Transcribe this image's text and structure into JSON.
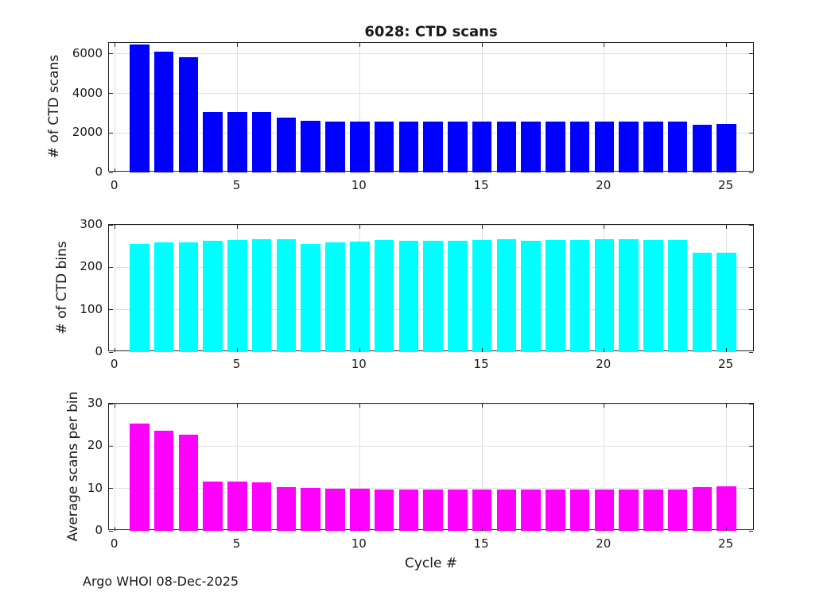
{
  "title": "6028: CTD scans",
  "footer": "Argo WHOI 08-Dec-2025",
  "chart_data": [
    {
      "type": "bar",
      "name": "ctd-scans",
      "title": "6028: CTD scans",
      "ylabel": "# of CTD scans",
      "color": "#0000FF",
      "x": [
        1,
        2,
        3,
        4,
        5,
        6,
        7,
        8,
        9,
        10,
        11,
        12,
        13,
        14,
        15,
        16,
        17,
        18,
        19,
        20,
        21,
        22,
        23,
        24,
        25
      ],
      "values": [
        6470,
        6110,
        5850,
        3070,
        3070,
        3070,
        2780,
        2620,
        2580,
        2580,
        2580,
        2580,
        2580,
        2580,
        2580,
        2580,
        2580,
        2580,
        2580,
        2580,
        2580,
        2580,
        2580,
        2430,
        2450
      ],
      "ylim": [
        0,
        6560
      ],
      "yticks": [
        0,
        2000,
        4000,
        6000
      ],
      "xlim": [
        -0.25,
        26.15
      ],
      "xticks": [
        0,
        5,
        10,
        15,
        20,
        25
      ],
      "grid": true,
      "bar_width": 0.8
    },
    {
      "type": "bar",
      "name": "ctd-bins",
      "ylabel": "# of CTD bins",
      "color": "#00FFFF",
      "x": [
        1,
        2,
        3,
        4,
        5,
        6,
        7,
        8,
        9,
        10,
        11,
        12,
        13,
        14,
        15,
        16,
        17,
        18,
        19,
        20,
        21,
        22,
        23,
        24,
        25
      ],
      "values": [
        256,
        258,
        258,
        262,
        264,
        267,
        267,
        256,
        258,
        260,
        264,
        263,
        262,
        262,
        264,
        267,
        263,
        264,
        264,
        267,
        267,
        264,
        264,
        234,
        234
      ],
      "ylim": [
        0,
        300
      ],
      "yticks": [
        0,
        100,
        200,
        300
      ],
      "xlim": [
        -0.25,
        26.15
      ],
      "xticks": [
        0,
        5,
        10,
        15,
        20,
        25
      ],
      "grid": true,
      "bar_width": 0.8
    },
    {
      "type": "bar",
      "name": "avg-scans-per-bin",
      "ylabel": "Average scans per bin",
      "xlabel": "Cycle #",
      "color": "#FF00FF",
      "x": [
        1,
        2,
        3,
        4,
        5,
        6,
        7,
        8,
        9,
        10,
        11,
        12,
        13,
        14,
        15,
        16,
        17,
        18,
        19,
        20,
        21,
        22,
        23,
        24,
        25
      ],
      "values": [
        25.3,
        23.7,
        22.7,
        11.7,
        11.7,
        11.5,
        10.4,
        10.2,
        10.0,
        9.9,
        9.8,
        9.8,
        9.8,
        9.8,
        9.8,
        9.7,
        9.8,
        9.8,
        9.8,
        9.7,
        9.7,
        9.8,
        9.8,
        10.4,
        10.5
      ],
      "ylim": [
        0,
        30
      ],
      "yticks": [
        0,
        10,
        20,
        30
      ],
      "xlim": [
        -0.25,
        26.15
      ],
      "xticks": [
        0,
        5,
        10,
        15,
        20,
        25
      ],
      "grid": true,
      "bar_width": 0.8
    }
  ]
}
